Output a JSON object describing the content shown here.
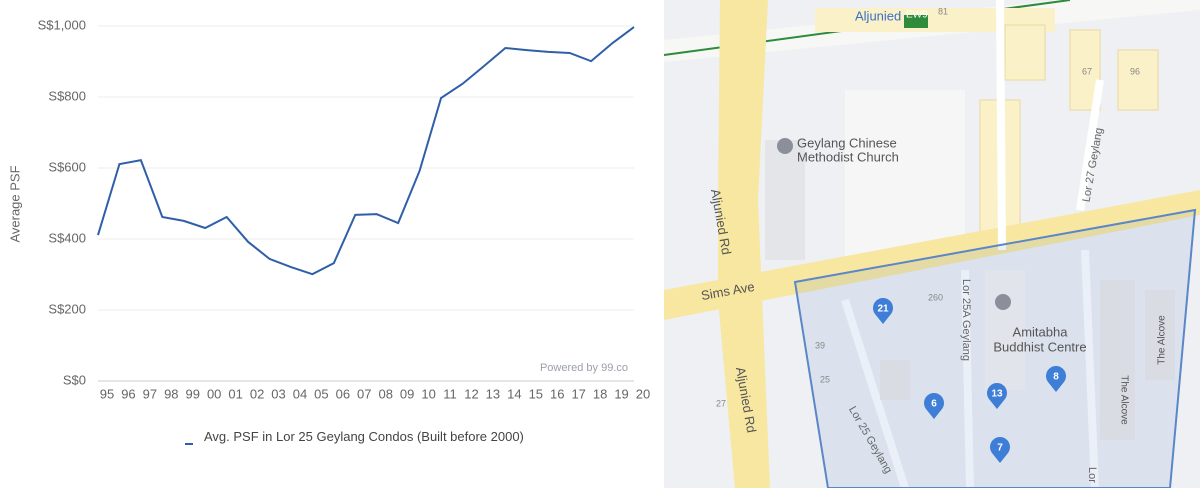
{
  "chart_data": {
    "type": "line",
    "y_label": "Average PSF",
    "credit": "Powered by 99.co",
    "categories": [
      "95",
      "96",
      "97",
      "98",
      "99",
      "00",
      "01",
      "02",
      "03",
      "04",
      "05",
      "06",
      "07",
      "08",
      "09",
      "10",
      "11",
      "12",
      "13",
      "14",
      "15",
      "16",
      "17",
      "18",
      "19",
      "20"
    ],
    "series": [
      {
        "name": "Avg. PSF in Lor 25 Geylang Condos (Built before 2000)",
        "color": "#2f5fa8",
        "values": [
          411,
          611,
          622,
          462,
          451,
          431,
          462,
          392,
          344,
          321,
          301,
          332,
          468,
          470,
          445,
          592,
          797,
          837,
          887,
          938,
          932,
          927,
          924,
          901,
          952,
          997
        ]
      }
    ],
    "ylim": [
      0,
      1000
    ],
    "yticks": [
      {
        "value": 0,
        "label": "S$0"
      },
      {
        "value": 200,
        "label": "S$200"
      },
      {
        "value": 400,
        "label": "S$400"
      },
      {
        "value": 600,
        "label": "S$600"
      },
      {
        "value": 800,
        "label": "S$800"
      },
      {
        "value": 1000,
        "label": "S$1,000"
      }
    ],
    "grid": true
  },
  "map": {
    "station": "Aljunied",
    "station_code": "EW9",
    "labels": [
      "Geylang Chinese",
      "Methodist Church",
      "Aljunied Rd",
      "Aljunied Rd",
      "Sims Ave",
      "Lor 27 Geylang",
      "Lor 25A Geylang",
      "Amitabha",
      "Buddhist Centre",
      "Lor 25 Geylang",
      "The Alcove",
      "The Alcove",
      "Lor"
    ],
    "pins": [
      "21",
      "6",
      "13",
      "8",
      "7"
    ],
    "house_numbers": [
      "81",
      "67",
      "96",
      "260",
      "39",
      "25",
      "27"
    ]
  }
}
